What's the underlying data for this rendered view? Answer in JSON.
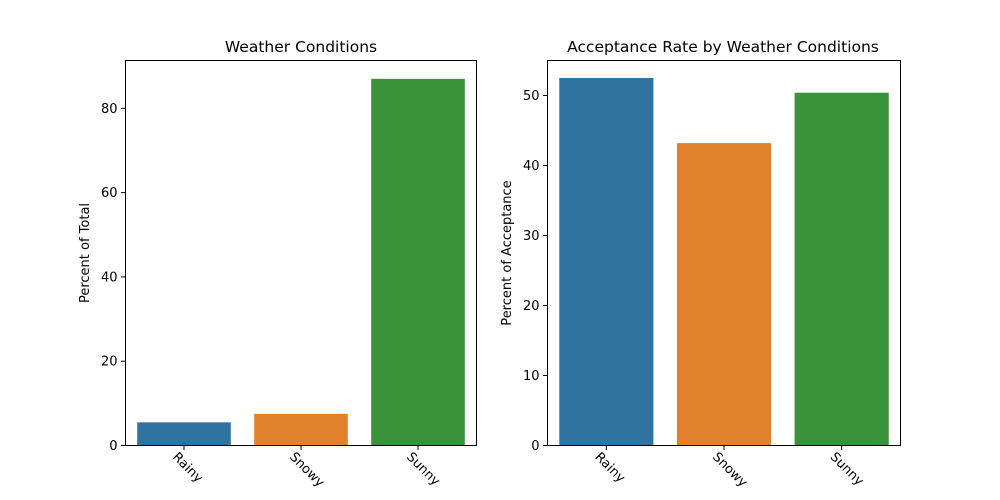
{
  "chart_data": [
    {
      "type": "bar",
      "title": "Weather Conditions",
      "xlabel": "",
      "ylabel": "Percent of Total",
      "categories": [
        "Rainy",
        "Snowy",
        "Sunny"
      ],
      "values": [
        5.5,
        7.5,
        87.0
      ],
      "colors": [
        "#3274a1",
        "#e1812c",
        "#3a923a"
      ],
      "ylim": [
        0,
        91.35
      ],
      "yticks": [
        0,
        20,
        40,
        60,
        80
      ],
      "xtick_rotation": 45,
      "grid": false,
      "legend": "none"
    },
    {
      "type": "bar",
      "title": "Acceptance Rate by Weather Conditions",
      "xlabel": "",
      "ylabel": "Percent of Acceptance",
      "categories": [
        "Rainy",
        "Snowy",
        "Sunny"
      ],
      "values": [
        52.5,
        43.2,
        50.4
      ],
      "colors": [
        "#3274a1",
        "#e1812c",
        "#3a923a"
      ],
      "ylim": [
        0,
        55.0
      ],
      "yticks": [
        0,
        10,
        20,
        30,
        40,
        50
      ],
      "xtick_rotation": 45,
      "grid": false,
      "legend": "none"
    }
  ]
}
